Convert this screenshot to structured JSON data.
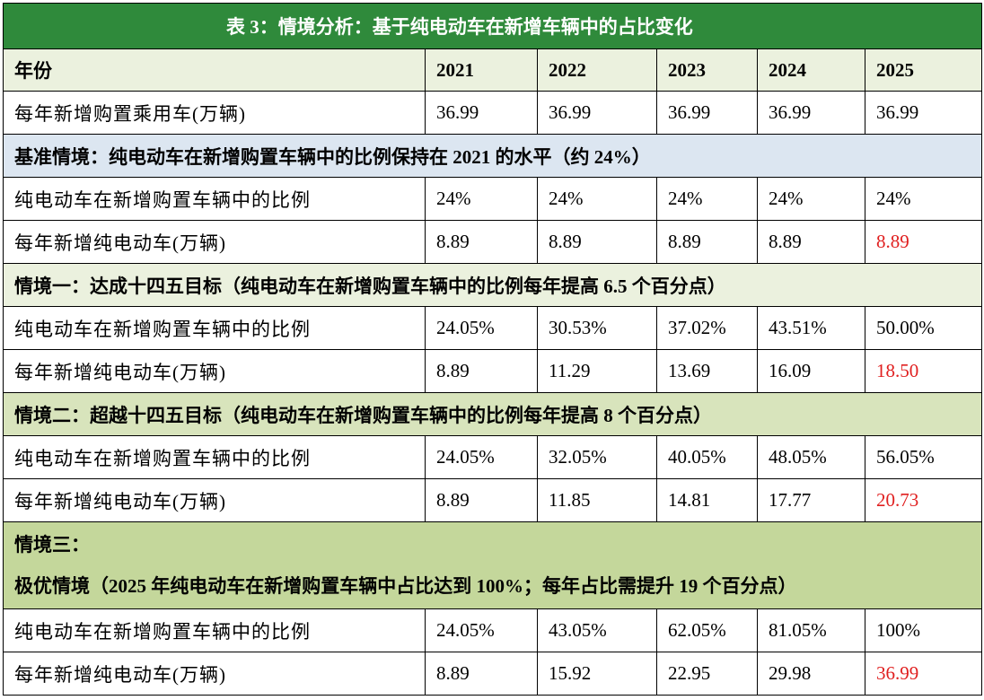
{
  "title": "表 3：情境分析：基于纯电动车在新增车辆中的占比变化",
  "header": {
    "label": "年份",
    "years": [
      "2021",
      "2022",
      "2023",
      "2024",
      "2025"
    ]
  },
  "total_row": {
    "label": "每年新增购置乘用车(万辆)",
    "values": [
      "36.99",
      "36.99",
      "36.99",
      "36.99",
      "36.99"
    ]
  },
  "scenarios": [
    {
      "heading": "基准情境：纯电动车在新增购置车辆中的比例保持在 2021 的水平（约 24%）",
      "ratio_row": {
        "label": "纯电动车在新增购置车辆中的比例",
        "values": [
          "24%",
          "24%",
          "24%",
          "24%",
          "24%"
        ]
      },
      "count_row": {
        "label": "每年新增纯电动车(万辆)",
        "values": [
          "8.89",
          "8.89",
          "8.89",
          "8.89",
          "8.89"
        ]
      }
    },
    {
      "heading": "情境一：达成十四五目标（纯电动车在新增购置车辆中的比例每年提高 6.5 个百分点）",
      "ratio_row": {
        "label": "纯电动车在新增购置车辆中的比例",
        "values": [
          "24.05%",
          "30.53%",
          "37.02%",
          "43.51%",
          "50.00%"
        ]
      },
      "count_row": {
        "label": "每年新增纯电动车(万辆)",
        "values": [
          "8.89",
          "11.29",
          "13.69",
          "16.09",
          "18.50"
        ]
      }
    },
    {
      "heading": "情境二：超越十四五目标（纯电动车在新增购置车辆中的比例每年提高 8 个百分点）",
      "ratio_row": {
        "label": "纯电动车在新增购置车辆中的比例",
        "values": [
          "24.05%",
          "32.05%",
          "40.05%",
          "48.05%",
          "56.05%"
        ]
      },
      "count_row": {
        "label": "每年新增纯电动车(万辆)",
        "values": [
          "8.89",
          "11.85",
          "14.81",
          "17.77",
          "20.73"
        ]
      }
    },
    {
      "heading_line1": "情境三：",
      "heading_line2": "极优情境（2025 年纯电动车在新增购置车辆中占比达到 100%；每年占比需提升 19 个百分点）",
      "ratio_row": {
        "label": "纯电动车在新增购置车辆中的比例",
        "values": [
          "24.05%",
          "43.05%",
          "62.05%",
          "81.05%",
          "100%"
        ]
      },
      "count_row": {
        "label": "每年新增纯电动车(万辆)",
        "values": [
          "8.89",
          "15.92",
          "22.95",
          "29.98",
          "36.99"
        ]
      }
    }
  ],
  "highlight_color": "#e02020"
}
